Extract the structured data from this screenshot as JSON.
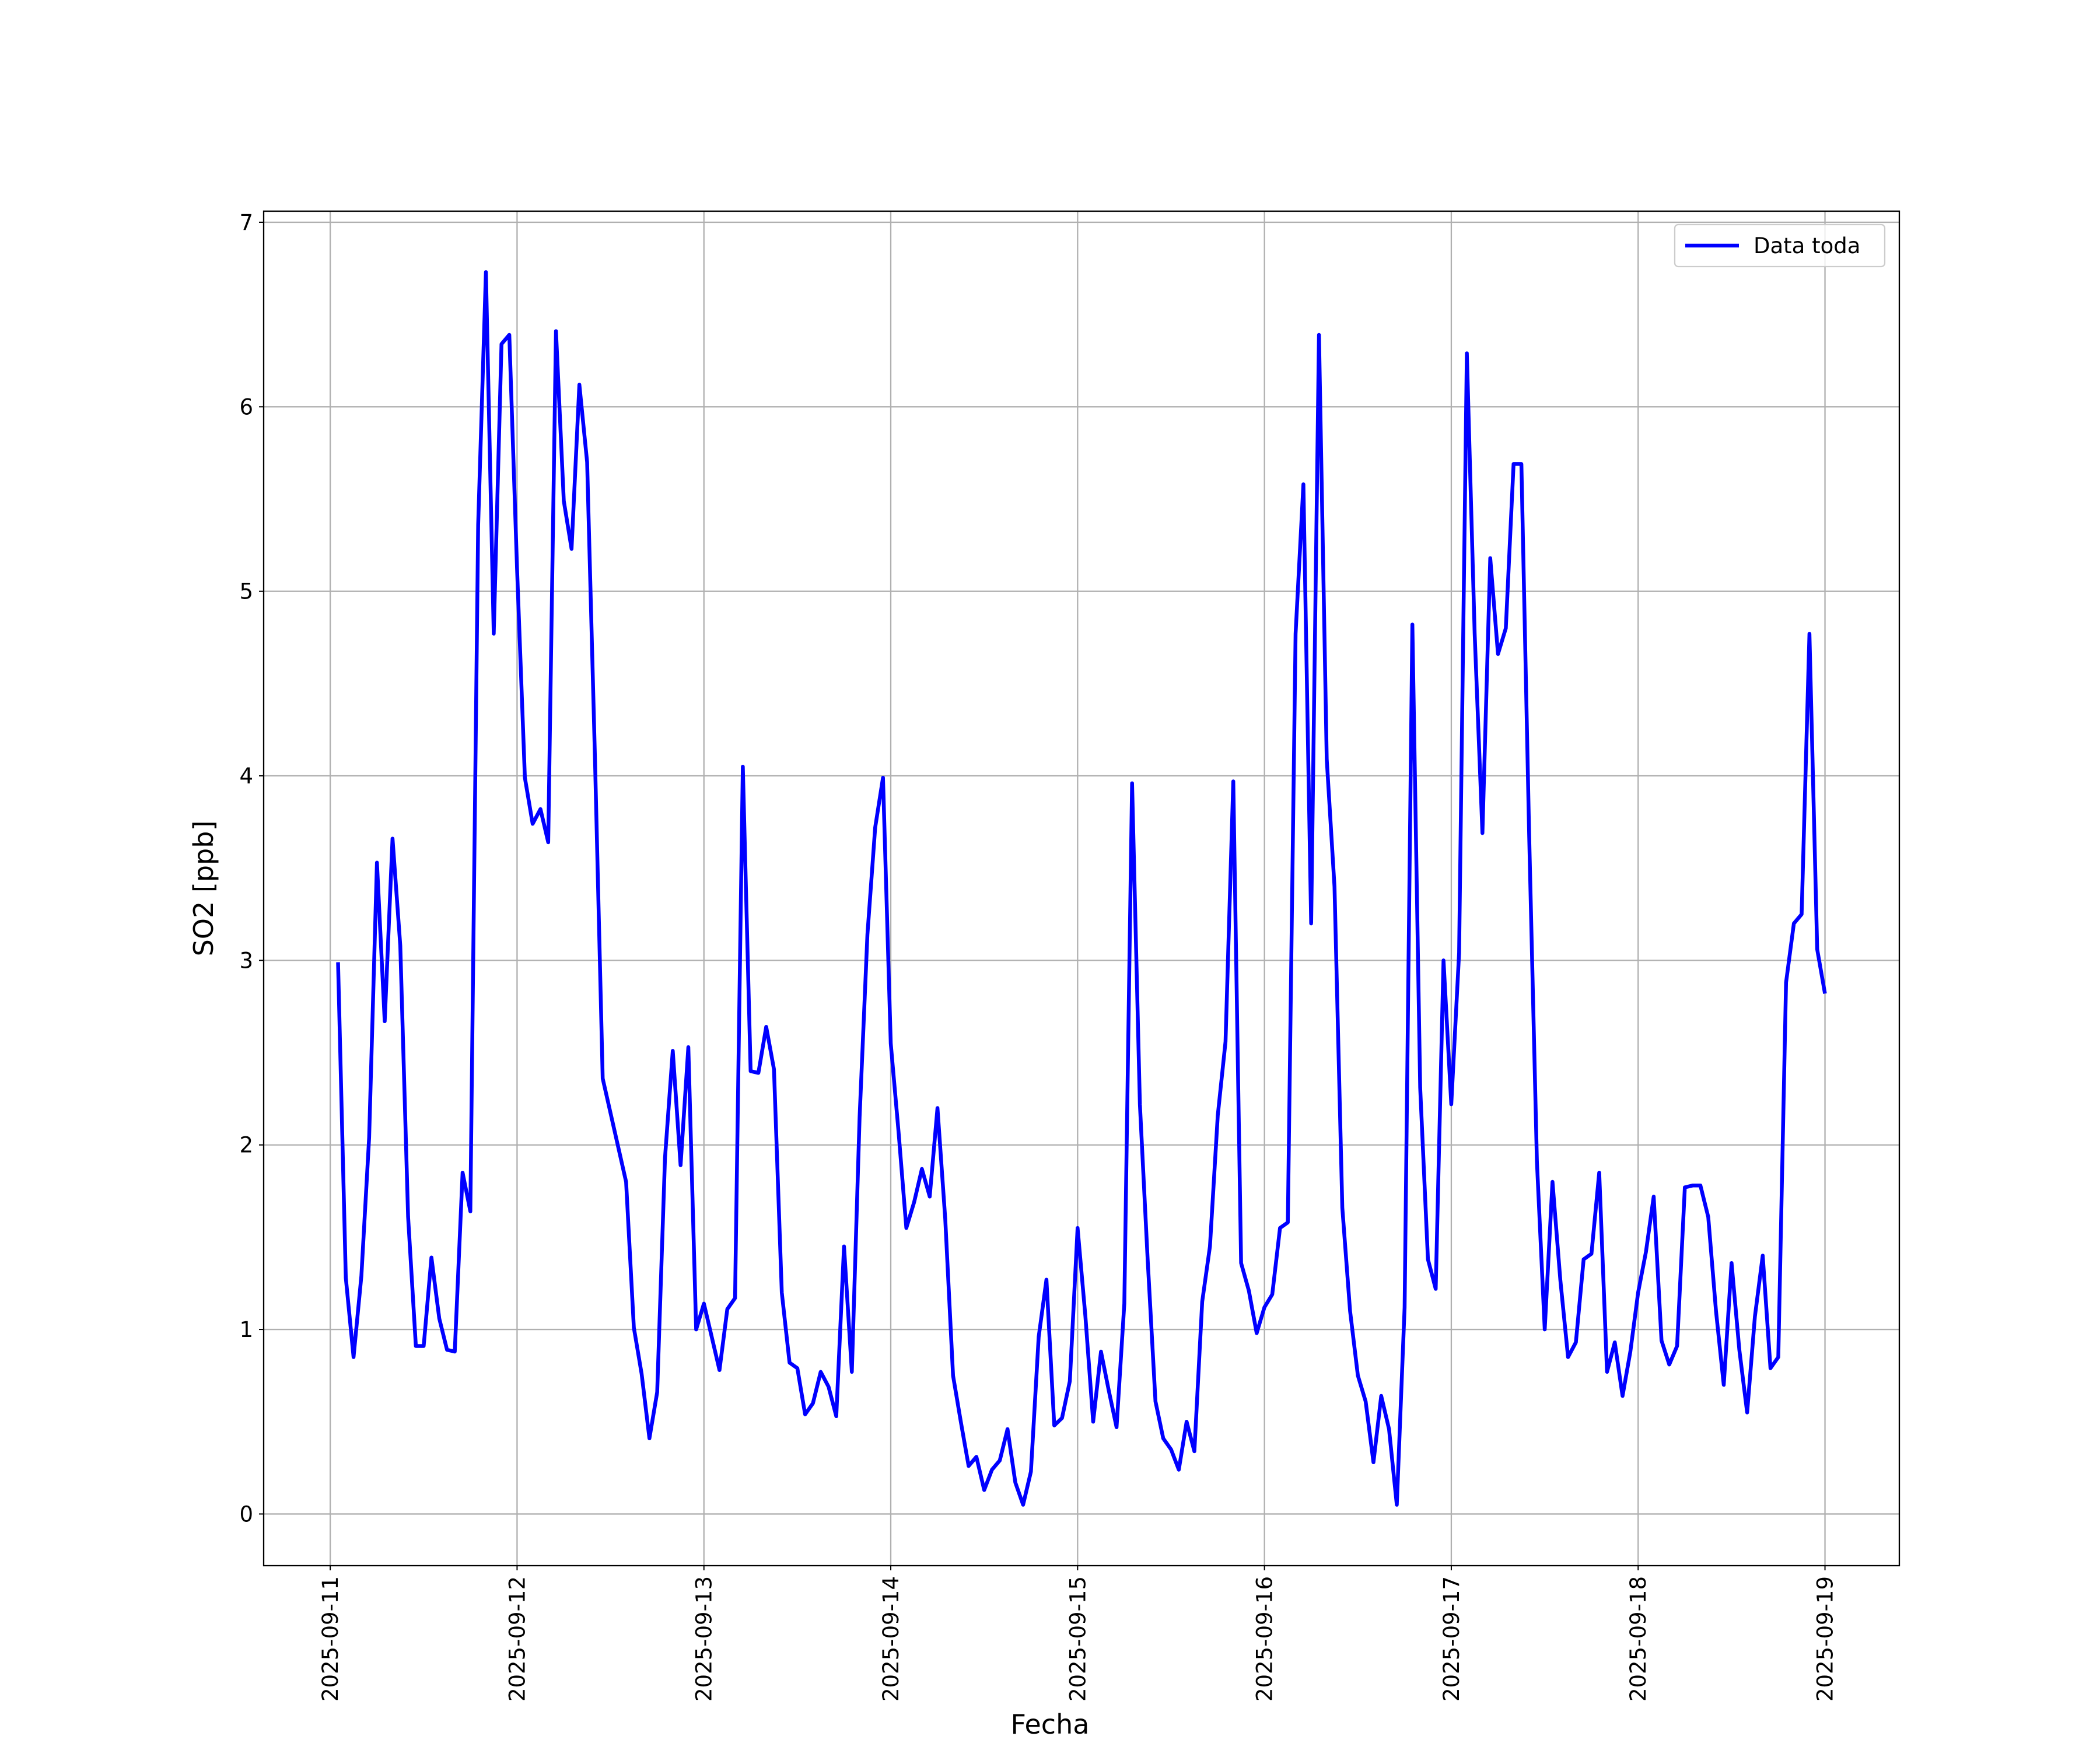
{
  "chart_data": {
    "type": "line",
    "x_label": "Fecha",
    "y_label": "SO2 [ppb]",
    "x": [
      "2025-09-11 01:00",
      "2025-09-11 02:00",
      "2025-09-11 03:00",
      "2025-09-11 04:00",
      "2025-09-11 05:00",
      "2025-09-11 06:00",
      "2025-09-11 07:00",
      "2025-09-11 08:00",
      "2025-09-11 09:00",
      "2025-09-11 10:00",
      "2025-09-11 11:00",
      "2025-09-11 12:00",
      "2025-09-11 13:00",
      "2025-09-11 14:00",
      "2025-09-11 15:00",
      "2025-09-11 16:00",
      "2025-09-11 17:00",
      "2025-09-11 18:00",
      "2025-09-11 19:00",
      "2025-09-11 20:00",
      "2025-09-11 21:00",
      "2025-09-11 22:00",
      "2025-09-11 23:00",
      "2025-09-12 00:00",
      "2025-09-12 01:00",
      "2025-09-12 02:00",
      "2025-09-12 03:00",
      "2025-09-12 04:00",
      "2025-09-12 05:00",
      "2025-09-12 06:00",
      "2025-09-12 07:00",
      "2025-09-12 08:00",
      "2025-09-12 09:00",
      "2025-09-12 10:00",
      "2025-09-12 11:00",
      "2025-09-12 14:00",
      "2025-09-12 15:00",
      "2025-09-12 16:00",
      "2025-09-12 17:00",
      "2025-09-12 18:00",
      "2025-09-12 19:00",
      "2025-09-12 20:00",
      "2025-09-12 21:00",
      "2025-09-12 22:00",
      "2025-09-12 23:00",
      "2025-09-13 00:00",
      "2025-09-13 01:00",
      "2025-09-13 02:00",
      "2025-09-13 03:00",
      "2025-09-13 04:00",
      "2025-09-13 05:00",
      "2025-09-13 06:00",
      "2025-09-13 07:00",
      "2025-09-13 08:00",
      "2025-09-13 09:00",
      "2025-09-13 10:00",
      "2025-09-13 11:00",
      "2025-09-13 12:00",
      "2025-09-13 13:00",
      "2025-09-13 14:00",
      "2025-09-13 15:00",
      "2025-09-13 16:00",
      "2025-09-13 17:00",
      "2025-09-13 18:00",
      "2025-09-13 19:00",
      "2025-09-13 20:00",
      "2025-09-13 21:00",
      "2025-09-13 22:00",
      "2025-09-13 23:00",
      "2025-09-14 00:00",
      "2025-09-14 01:00",
      "2025-09-14 02:00",
      "2025-09-14 03:00",
      "2025-09-14 04:00",
      "2025-09-14 05:00",
      "2025-09-14 06:00",
      "2025-09-14 07:00",
      "2025-09-14 08:00",
      "2025-09-14 09:00",
      "2025-09-14 10:00",
      "2025-09-14 11:00",
      "2025-09-14 12:00",
      "2025-09-14 13:00",
      "2025-09-14 14:00",
      "2025-09-14 15:00",
      "2025-09-14 16:00",
      "2025-09-14 17:00",
      "2025-09-14 18:00",
      "2025-09-14 19:00",
      "2025-09-14 20:00",
      "2025-09-14 21:00",
      "2025-09-14 22:00",
      "2025-09-14 23:00",
      "2025-09-15 00:00",
      "2025-09-15 01:00",
      "2025-09-15 02:00",
      "2025-09-15 03:00",
      "2025-09-15 04:00",
      "2025-09-15 05:00",
      "2025-09-15 06:00",
      "2025-09-15 07:00",
      "2025-09-15 08:00",
      "2025-09-15 09:00",
      "2025-09-15 10:00",
      "2025-09-15 11:00",
      "2025-09-15 12:00",
      "2025-09-15 13:00",
      "2025-09-15 14:00",
      "2025-09-15 15:00",
      "2025-09-15 16:00",
      "2025-09-15 17:00",
      "2025-09-15 18:00",
      "2025-09-15 19:00",
      "2025-09-15 20:00",
      "2025-09-15 21:00",
      "2025-09-15 22:00",
      "2025-09-15 23:00",
      "2025-09-16 00:00",
      "2025-09-16 01:00",
      "2025-09-16 02:00",
      "2025-09-16 03:00",
      "2025-09-16 04:00",
      "2025-09-16 05:00",
      "2025-09-16 06:00",
      "2025-09-16 07:00",
      "2025-09-16 08:00",
      "2025-09-16 09:00",
      "2025-09-16 10:00",
      "2025-09-16 11:00",
      "2025-09-16 12:00",
      "2025-09-16 13:00",
      "2025-09-16 14:00",
      "2025-09-16 15:00",
      "2025-09-16 16:00",
      "2025-09-16 17:00",
      "2025-09-16 18:00",
      "2025-09-16 19:00",
      "2025-09-16 20:00",
      "2025-09-16 21:00",
      "2025-09-16 22:00",
      "2025-09-16 23:00",
      "2025-09-17 00:00",
      "2025-09-17 01:00",
      "2025-09-17 02:00",
      "2025-09-17 03:00",
      "2025-09-17 04:00",
      "2025-09-17 05:00",
      "2025-09-17 06:00",
      "2025-09-17 07:00",
      "2025-09-17 08:00",
      "2025-09-17 09:00",
      "2025-09-17 10:00",
      "2025-09-17 11:00",
      "2025-09-17 12:00",
      "2025-09-17 13:00",
      "2025-09-17 14:00",
      "2025-09-17 15:00",
      "2025-09-17 16:00",
      "2025-09-17 17:00",
      "2025-09-17 18:00",
      "2025-09-17 19:00",
      "2025-09-17 20:00",
      "2025-09-17 21:00",
      "2025-09-17 22:00",
      "2025-09-17 23:00",
      "2025-09-18 00:00",
      "2025-09-18 01:00",
      "2025-09-18 02:00",
      "2025-09-18 03:00",
      "2025-09-18 04:00",
      "2025-09-18 05:00",
      "2025-09-18 06:00",
      "2025-09-18 07:00",
      "2025-09-18 08:00",
      "2025-09-18 09:00",
      "2025-09-18 10:00",
      "2025-09-18 11:00",
      "2025-09-18 12:00",
      "2025-09-18 13:00",
      "2025-09-18 14:00",
      "2025-09-18 15:00",
      "2025-09-18 16:00",
      "2025-09-18 17:00",
      "2025-09-18 18:00",
      "2025-09-18 19:00",
      "2025-09-18 20:00",
      "2025-09-18 21:00",
      "2025-09-18 22:00",
      "2025-09-18 23:00",
      "2025-09-19 00:00"
    ],
    "series": [
      {
        "name": "Data toda",
        "color": "#0000ff",
        "values": [
          2.99,
          1.28,
          0.85,
          1.29,
          2.04,
          3.53,
          2.67,
          3.66,
          3.08,
          1.61,
          0.91,
          0.91,
          1.39,
          1.06,
          0.89,
          0.88,
          1.85,
          1.64,
          5.36,
          6.73,
          4.77,
          6.34,
          6.39,
          5.12,
          3.99,
          3.74,
          3.82,
          3.64,
          6.41,
          5.49,
          5.23,
          6.12,
          5.7,
          4.1,
          2.36,
          1.8,
          1.01,
          0.76,
          0.41,
          0.66,
          1.93,
          2.51,
          1.89,
          2.53,
          1.0,
          1.14,
          0.96,
          0.78,
          1.11,
          1.17,
          4.05,
          2.4,
          2.39,
          2.64,
          2.41,
          1.2,
          0.82,
          0.79,
          0.54,
          0.6,
          0.77,
          0.69,
          0.53,
          1.45,
          0.77,
          2.15,
          3.14,
          3.72,
          3.99,
          2.55,
          2.07,
          1.55,
          1.69,
          1.87,
          1.72,
          2.2,
          1.6,
          0.75,
          0.5,
          0.26,
          0.31,
          0.13,
          0.24,
          0.29,
          0.46,
          0.17,
          0.05,
          0.23,
          0.96,
          1.27,
          0.48,
          0.52,
          0.72,
          1.55,
          1.07,
          0.5,
          0.88,
          0.67,
          0.47,
          1.14,
          3.96,
          2.22,
          1.38,
          0.61,
          0.41,
          0.35,
          0.24,
          0.5,
          0.34,
          1.15,
          1.45,
          2.16,
          2.56,
          3.97,
          1.36,
          1.21,
          0.98,
          1.12,
          1.19,
          1.55,
          1.58,
          4.77,
          5.58,
          3.2,
          6.39,
          4.09,
          3.4,
          1.66,
          1.1,
          0.75,
          0.61,
          0.28,
          0.64,
          0.46,
          0.05,
          1.12,
          4.82,
          2.31,
          1.38,
          1.22,
          3.0,
          2.22,
          3.04,
          6.29,
          4.77,
          3.69,
          5.18,
          4.66,
          4.8,
          5.69,
          5.69,
          3.68,
          1.91,
          1.0,
          1.8,
          1.27,
          0.85,
          0.93,
          1.38,
          1.41,
          1.85,
          0.77,
          0.93,
          0.64,
          0.88,
          1.2,
          1.42,
          1.72,
          0.94,
          0.81,
          0.91,
          1.77,
          1.78,
          1.78,
          1.61,
          1.1,
          0.7,
          1.36,
          0.89,
          0.55,
          1.07,
          1.4,
          0.79,
          0.85,
          2.88,
          3.2,
          3.25,
          4.77,
          3.06,
          2.82
        ]
      }
    ],
    "xlim": [
      "2025-09-10 15:27",
      "2025-09-19 09:33"
    ],
    "xticks": [
      "2025-09-11",
      "2025-09-12",
      "2025-09-13",
      "2025-09-14",
      "2025-09-15",
      "2025-09-16",
      "2025-09-17",
      "2025-09-18",
      "2025-09-19"
    ],
    "ylim": [
      -0.28,
      7.06
    ],
    "yticks": [
      0,
      1,
      2,
      3,
      4,
      5,
      6,
      7
    ],
    "grid": true,
    "legend": "upper right"
  }
}
